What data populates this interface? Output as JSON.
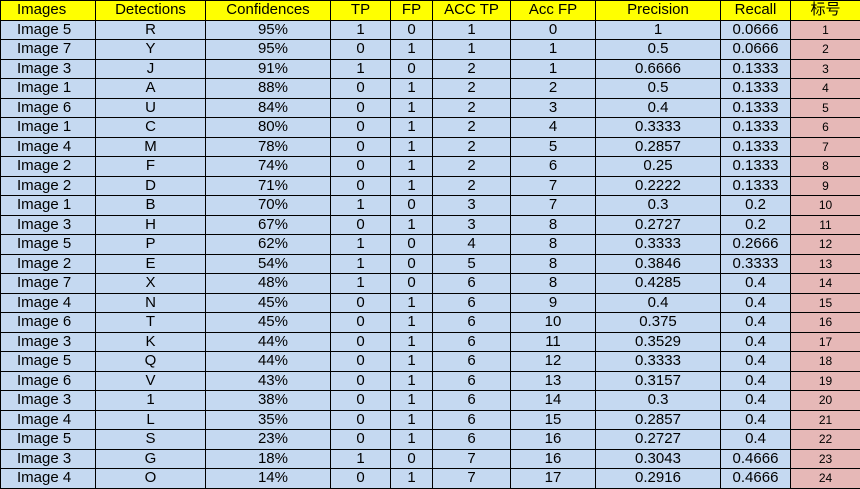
{
  "table": {
    "header": [
      "Images",
      "Detections",
      "Confidences",
      "TP",
      "FP",
      "ACC TP",
      "Acc FP",
      "Precision",
      "Recall",
      "标号"
    ],
    "rows": [
      [
        "Image 5",
        "R",
        "95%",
        "1",
        "0",
        "1",
        "0",
        "1",
        "0.0666",
        "1"
      ],
      [
        "Image 7",
        "Y",
        "95%",
        "0",
        "1",
        "1",
        "1",
        "0.5",
        "0.0666",
        "2"
      ],
      [
        "Image 3",
        "J",
        "91%",
        "1",
        "0",
        "2",
        "1",
        "0.6666",
        "0.1333",
        "3"
      ],
      [
        "Image 1",
        "A",
        "88%",
        "0",
        "1",
        "2",
        "2",
        "0.5",
        "0.1333",
        "4"
      ],
      [
        "Image 6",
        "U",
        "84%",
        "0",
        "1",
        "2",
        "3",
        "0.4",
        "0.1333",
        "5"
      ],
      [
        "Image 1",
        "C",
        "80%",
        "0",
        "1",
        "2",
        "4",
        "0.3333",
        "0.1333",
        "6"
      ],
      [
        "Image 4",
        "M",
        "78%",
        "0",
        "1",
        "2",
        "5",
        "0.2857",
        "0.1333",
        "7"
      ],
      [
        "Image 2",
        "F",
        "74%",
        "0",
        "1",
        "2",
        "6",
        "0.25",
        "0.1333",
        "8"
      ],
      [
        "Image 2",
        "D",
        "71%",
        "0",
        "1",
        "2",
        "7",
        "0.2222",
        "0.1333",
        "9"
      ],
      [
        "Image 1",
        "B",
        "70%",
        "1",
        "0",
        "3",
        "7",
        "0.3",
        "0.2",
        "10"
      ],
      [
        "Image 3",
        "H",
        "67%",
        "0",
        "1",
        "3",
        "8",
        "0.2727",
        "0.2",
        "11"
      ],
      [
        "Image 5",
        "P",
        "62%",
        "1",
        "0",
        "4",
        "8",
        "0.3333",
        "0.2666",
        "12"
      ],
      [
        "Image 2",
        "E",
        "54%",
        "1",
        "0",
        "5",
        "8",
        "0.3846",
        "0.3333",
        "13"
      ],
      [
        "Image 7",
        "X",
        "48%",
        "1",
        "0",
        "6",
        "8",
        "0.4285",
        "0.4",
        "14"
      ],
      [
        "Image 4",
        "N",
        "45%",
        "0",
        "1",
        "6",
        "9",
        "0.4",
        "0.4",
        "15"
      ],
      [
        "Image 6",
        "T",
        "45%",
        "0",
        "1",
        "6",
        "10",
        "0.375",
        "0.4",
        "16"
      ],
      [
        "Image 3",
        "K",
        "44%",
        "0",
        "1",
        "6",
        "11",
        "0.3529",
        "0.4",
        "17"
      ],
      [
        "Image 5",
        "Q",
        "44%",
        "0",
        "1",
        "6",
        "12",
        "0.3333",
        "0.4",
        "18"
      ],
      [
        "Image 6",
        "V",
        "43%",
        "0",
        "1",
        "6",
        "13",
        "0.3157",
        "0.4",
        "19"
      ],
      [
        "Image 3",
        "1",
        "38%",
        "0",
        "1",
        "6",
        "14",
        "0.3",
        "0.4",
        "20"
      ],
      [
        "Image 4",
        "L",
        "35%",
        "0",
        "1",
        "6",
        "15",
        "0.2857",
        "0.4",
        "21"
      ],
      [
        "Image 5",
        "S",
        "23%",
        "0",
        "1",
        "6",
        "16",
        "0.2727",
        "0.4",
        "22"
      ],
      [
        "Image 3",
        "G",
        "18%",
        "1",
        "0",
        "7",
        "16",
        "0.3043",
        "0.4666",
        "23"
      ],
      [
        "Image 4",
        "O",
        "14%",
        "0",
        "1",
        "7",
        "17",
        "0.2916",
        "0.4666",
        "24"
      ]
    ]
  }
}
